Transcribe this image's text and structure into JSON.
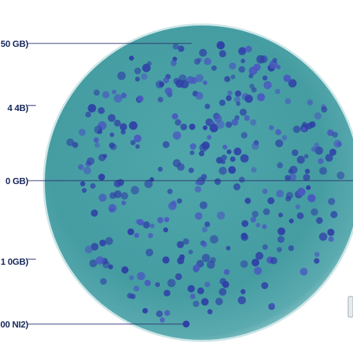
{
  "diagram": {
    "labels": [
      {
        "text": "50 GB)"
      },
      {
        "text": "4 4B)"
      },
      {
        "text": "0 GB)"
      },
      {
        "text": "1 0GB)"
      },
      {
        "text": "00 NI2)"
      }
    ]
  },
  "colors": {
    "background": "#ffffff",
    "sphere_core": "#3f9ea3",
    "sphere_edge": "#2e8a8e",
    "rim_glow": "#8fc9cc",
    "dots": "#2f3fa6",
    "dots_light": "#4a58c0",
    "label_text": "#1b2a5e",
    "leader_line": "#2a3470"
  }
}
